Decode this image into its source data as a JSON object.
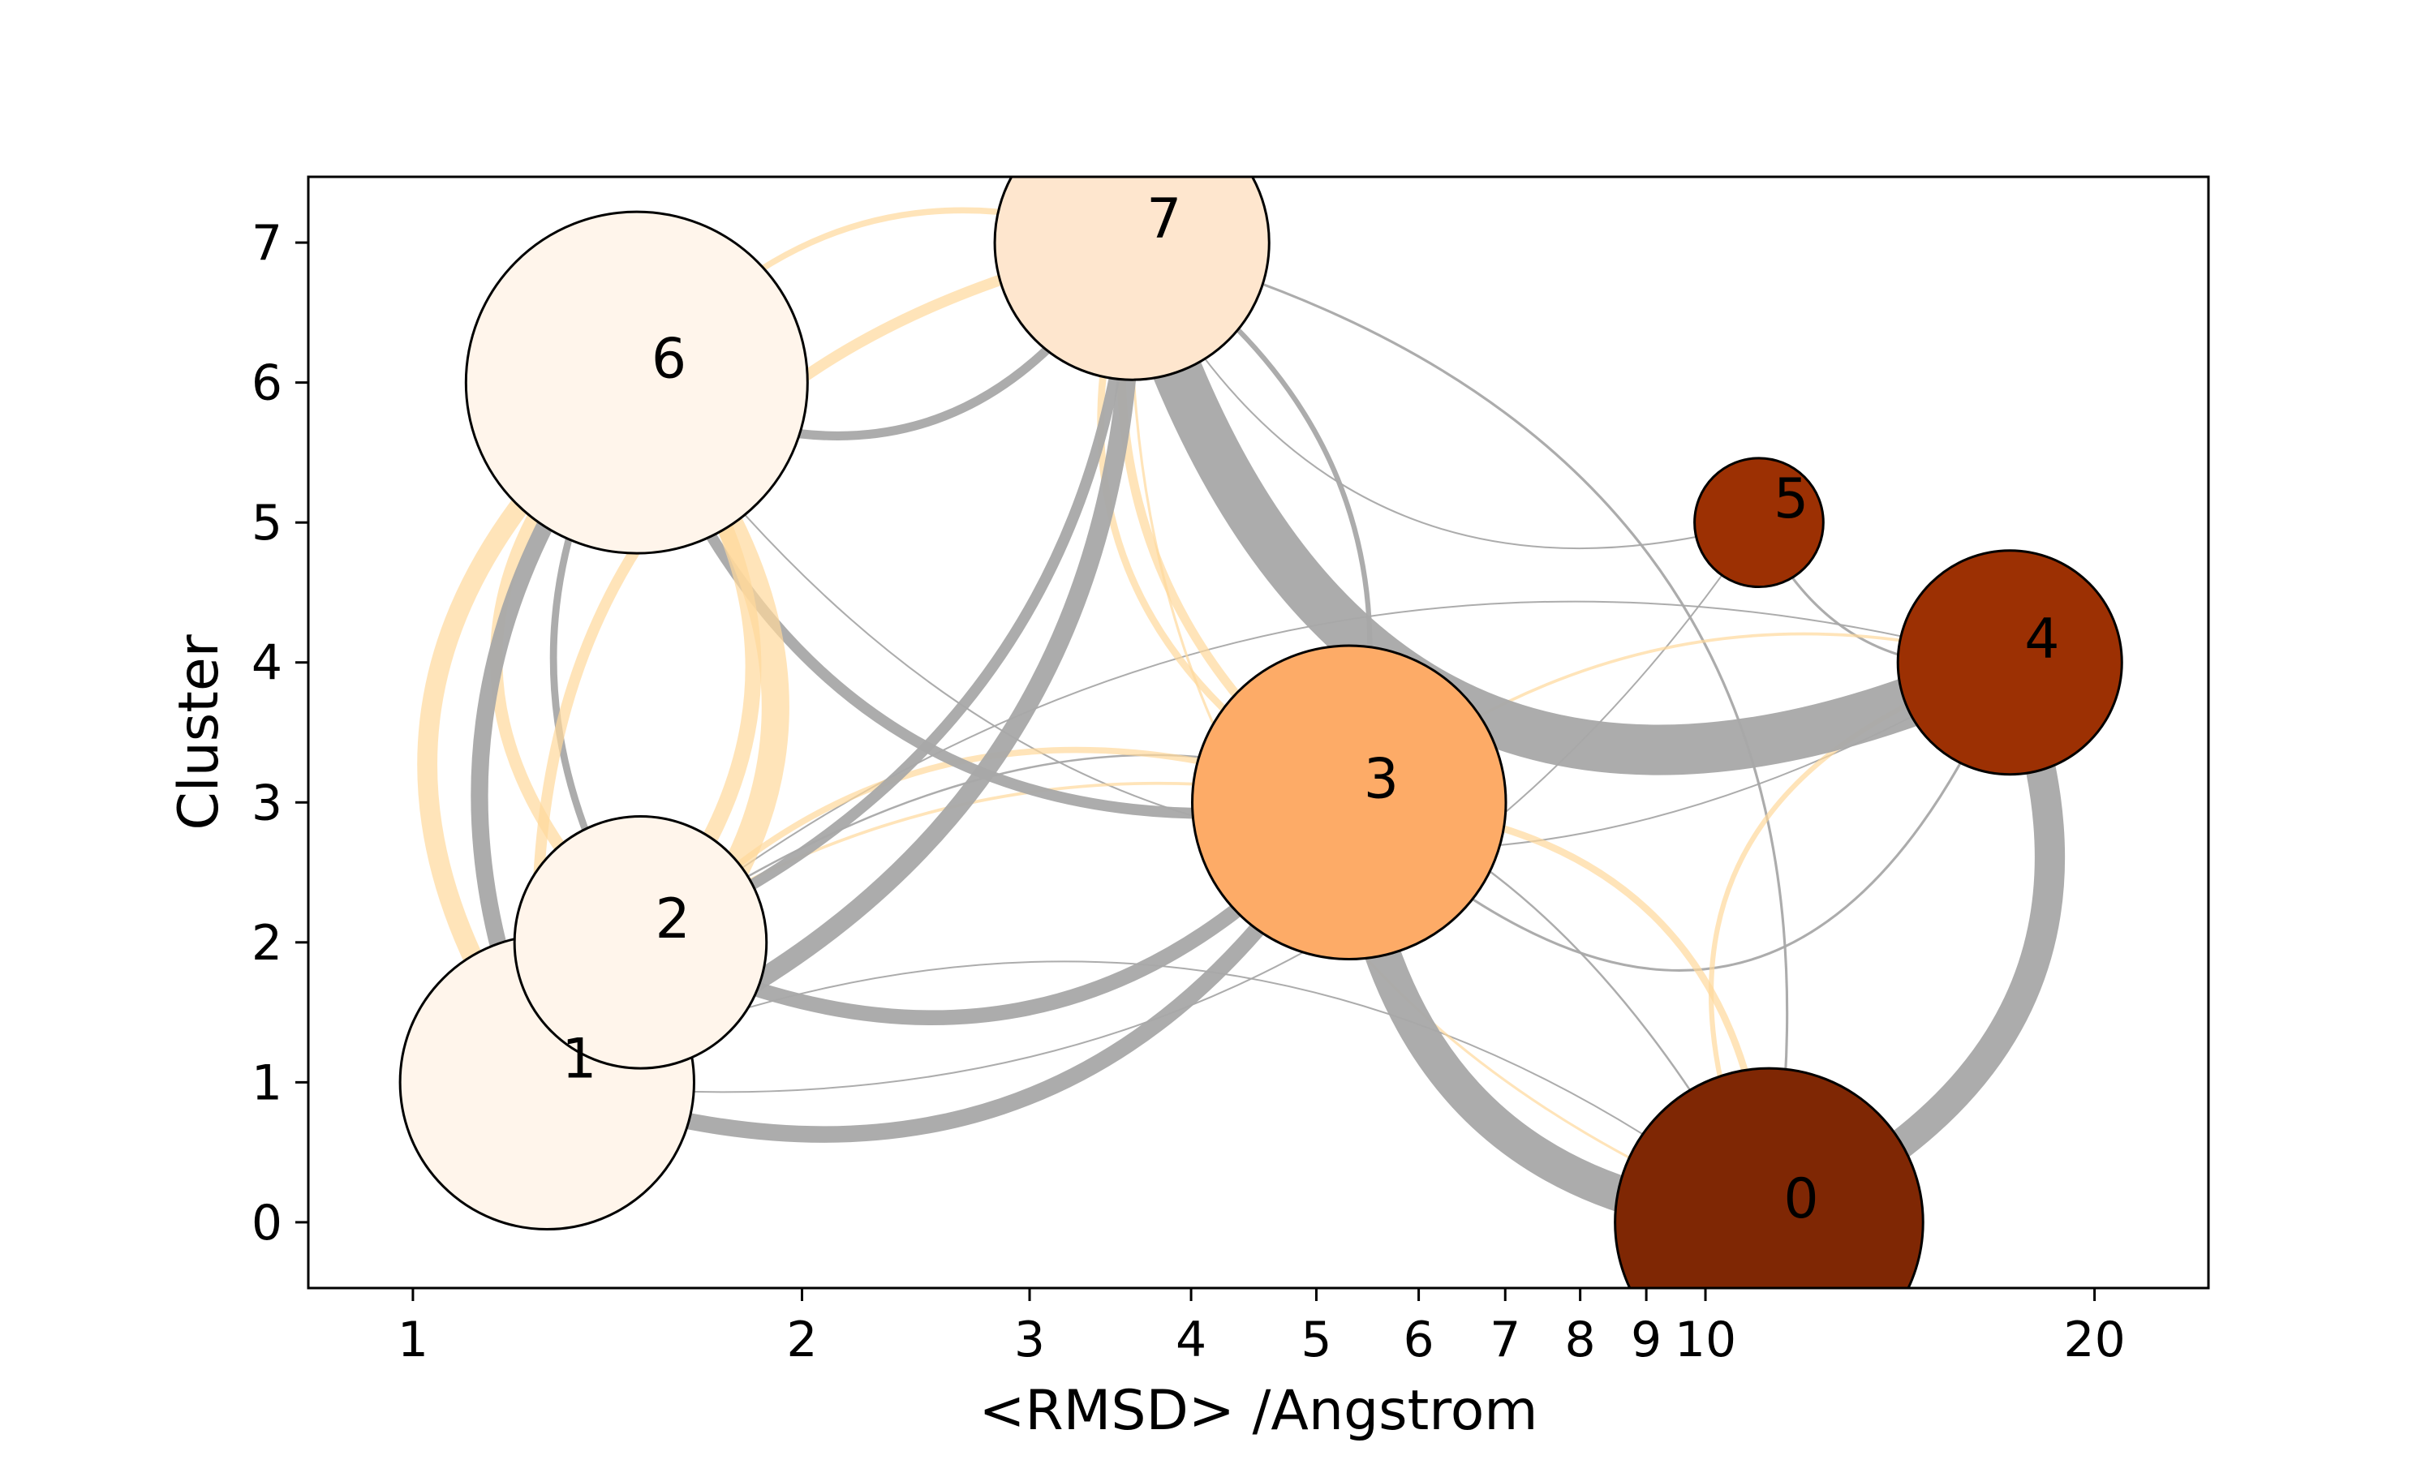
{
  "chart_data": {
    "type": "network",
    "xlabel": "<RMSD> /Angstrom",
    "ylabel": "Cluster",
    "xscale": "log",
    "xlim": [
      0.83,
      24.5
    ],
    "ylim": [
      -0.47,
      7.47
    ],
    "xticks": [
      {
        "value": 1,
        "label": "1"
      },
      {
        "value": 2,
        "label": "2"
      },
      {
        "value": 3,
        "label": "3"
      },
      {
        "value": 4,
        "label": "4"
      },
      {
        "value": 5,
        "label": "5"
      },
      {
        "value": 6,
        "label": "6"
      },
      {
        "value": 7,
        "label": "7"
      },
      {
        "value": 8,
        "label": "8"
      },
      {
        "value": 9,
        "label": "9"
      },
      {
        "value": 10,
        "label": "10"
      },
      {
        "value": 20,
        "label": "20"
      }
    ],
    "yticks": [
      {
        "value": 0,
        "label": "0"
      },
      {
        "value": 1,
        "label": "1"
      },
      {
        "value": 2,
        "label": "2"
      },
      {
        "value": 3,
        "label": "3"
      },
      {
        "value": 4,
        "label": "4"
      },
      {
        "value": 5,
        "label": "5"
      },
      {
        "value": 6,
        "label": "6"
      },
      {
        "value": 7,
        "label": "7"
      }
    ],
    "nodes": [
      {
        "id": "0",
        "label": "0",
        "x": 11.2,
        "y": 0,
        "size": 1.1,
        "color": "#7f2704"
      },
      {
        "id": "1",
        "label": "1",
        "x": 1.27,
        "y": 1,
        "size": 1.05,
        "color": "#fff5eb"
      },
      {
        "id": "2",
        "label": "2",
        "x": 1.5,
        "y": 2,
        "size": 0.9,
        "color": "#fff5eb"
      },
      {
        "id": "3",
        "label": "3",
        "x": 5.3,
        "y": 3,
        "size": 1.12,
        "color": "#fdab67"
      },
      {
        "id": "4",
        "label": "4",
        "x": 17.2,
        "y": 4,
        "size": 0.8,
        "color": "#9c3003"
      },
      {
        "id": "5",
        "label": "5",
        "x": 11.0,
        "y": 5,
        "size": 0.46,
        "color": "#9c3003"
      },
      {
        "id": "6",
        "label": "6",
        "x": 1.49,
        "y": 6,
        "size": 1.22,
        "color": "#fff5eb"
      },
      {
        "id": "7",
        "label": "7",
        "x": 3.6,
        "y": 7,
        "size": 0.98,
        "color": "#fee6ce"
      }
    ],
    "edge_colors": {
      "gray": "#a8a8a8",
      "orange": "#ffd99b"
    },
    "edges": [
      {
        "from": "7",
        "to": "4",
        "weight": 1.0,
        "color": "gray",
        "rad": -0.55
      },
      {
        "from": "3",
        "to": "0",
        "weight": 0.72,
        "color": "gray",
        "rad": -0.4
      },
      {
        "from": "0",
        "to": "4",
        "weight": 0.6,
        "color": "gray",
        "rad": -0.45
      },
      {
        "from": "1",
        "to": "7",
        "weight": 0.38,
        "color": "gray",
        "rad": -0.35
      },
      {
        "from": "1",
        "to": "3",
        "weight": 0.33,
        "color": "gray",
        "rad": -0.4
      },
      {
        "from": "2",
        "to": "3",
        "weight": 0.3,
        "color": "gray",
        "rad": -0.38
      },
      {
        "from": "6",
        "to": "1",
        "weight": 0.34,
        "color": "gray",
        "rad": -0.3
      },
      {
        "from": "6",
        "to": "3",
        "weight": 0.22,
        "color": "gray",
        "rad": -0.4
      },
      {
        "from": "2",
        "to": "7",
        "weight": 0.22,
        "color": "gray",
        "rad": -0.3
      },
      {
        "from": "6",
        "to": "7",
        "weight": 0.18,
        "color": "gray",
        "rad": -0.45
      },
      {
        "from": "2",
        "to": "6",
        "weight": 0.14,
        "color": "gray",
        "rad": 0.3
      },
      {
        "from": "1",
        "to": "2",
        "weight": 0.12,
        "color": "gray",
        "rad": -0.5
      },
      {
        "from": "7",
        "to": "3",
        "weight": 0.1,
        "color": "gray",
        "rad": 0.35
      },
      {
        "from": "7",
        "to": "0",
        "weight": 0.05,
        "color": "gray",
        "rad": 0.45
      },
      {
        "from": "3",
        "to": "4",
        "weight": 0.05,
        "color": "gray",
        "rad": -0.7
      },
      {
        "from": "5",
        "to": "4",
        "weight": 0.05,
        "color": "gray",
        "rad": -0.35
      },
      {
        "from": "2",
        "to": "0",
        "weight": 0.04,
        "color": "gray",
        "rad": 0.55
      },
      {
        "from": "1",
        "to": "0",
        "weight": 0.03,
        "color": "gray",
        "rad": 0.3
      },
      {
        "from": "7",
        "to": "5",
        "weight": 0.03,
        "color": "gray",
        "rad": -0.4
      },
      {
        "from": "6",
        "to": "4",
        "weight": 0.02,
        "color": "gray",
        "rad": -0.45
      },
      {
        "from": "1",
        "to": "5",
        "weight": 0.02,
        "color": "gray",
        "rad": -0.3
      },
      {
        "from": "2",
        "to": "4",
        "weight": 0.02,
        "color": "gray",
        "rad": 0.25
      },
      {
        "from": "1",
        "to": "6",
        "weight": 0.55,
        "color": "orange",
        "rad": -0.5
      },
      {
        "from": "6",
        "to": "1",
        "weight": 0.4,
        "color": "orange",
        "rad": -0.45
      },
      {
        "from": "6",
        "to": "2",
        "weight": 0.32,
        "color": "orange",
        "rad": 0.4
      },
      {
        "from": "2",
        "to": "6",
        "weight": 0.25,
        "color": "orange",
        "rad": 0.5
      },
      {
        "from": "1",
        "to": "7",
        "weight": 0.22,
        "color": "orange",
        "rad": 0.45
      },
      {
        "from": "7",
        "to": "3",
        "weight": 0.18,
        "color": "orange",
        "rad": -0.3
      },
      {
        "from": "3",
        "to": "7",
        "weight": 0.14,
        "color": "orange",
        "rad": 0.4
      },
      {
        "from": "6",
        "to": "7",
        "weight": 0.12,
        "color": "orange",
        "rad": 0.35
      },
      {
        "from": "1",
        "to": "3",
        "weight": 0.12,
        "color": "orange",
        "rad": 0.4
      },
      {
        "from": "3",
        "to": "0",
        "weight": 0.14,
        "color": "orange",
        "rad": 0.45
      },
      {
        "from": "0",
        "to": "4",
        "weight": 0.1,
        "color": "orange",
        "rad": 0.55
      },
      {
        "from": "3",
        "to": "4",
        "weight": 0.06,
        "color": "orange",
        "rad": 0.25
      },
      {
        "from": "7",
        "to": "0",
        "weight": 0.05,
        "color": "orange",
        "rad": -0.35
      },
      {
        "from": "2",
        "to": "3",
        "weight": 0.06,
        "color": "orange",
        "rad": 0.2
      }
    ]
  }
}
